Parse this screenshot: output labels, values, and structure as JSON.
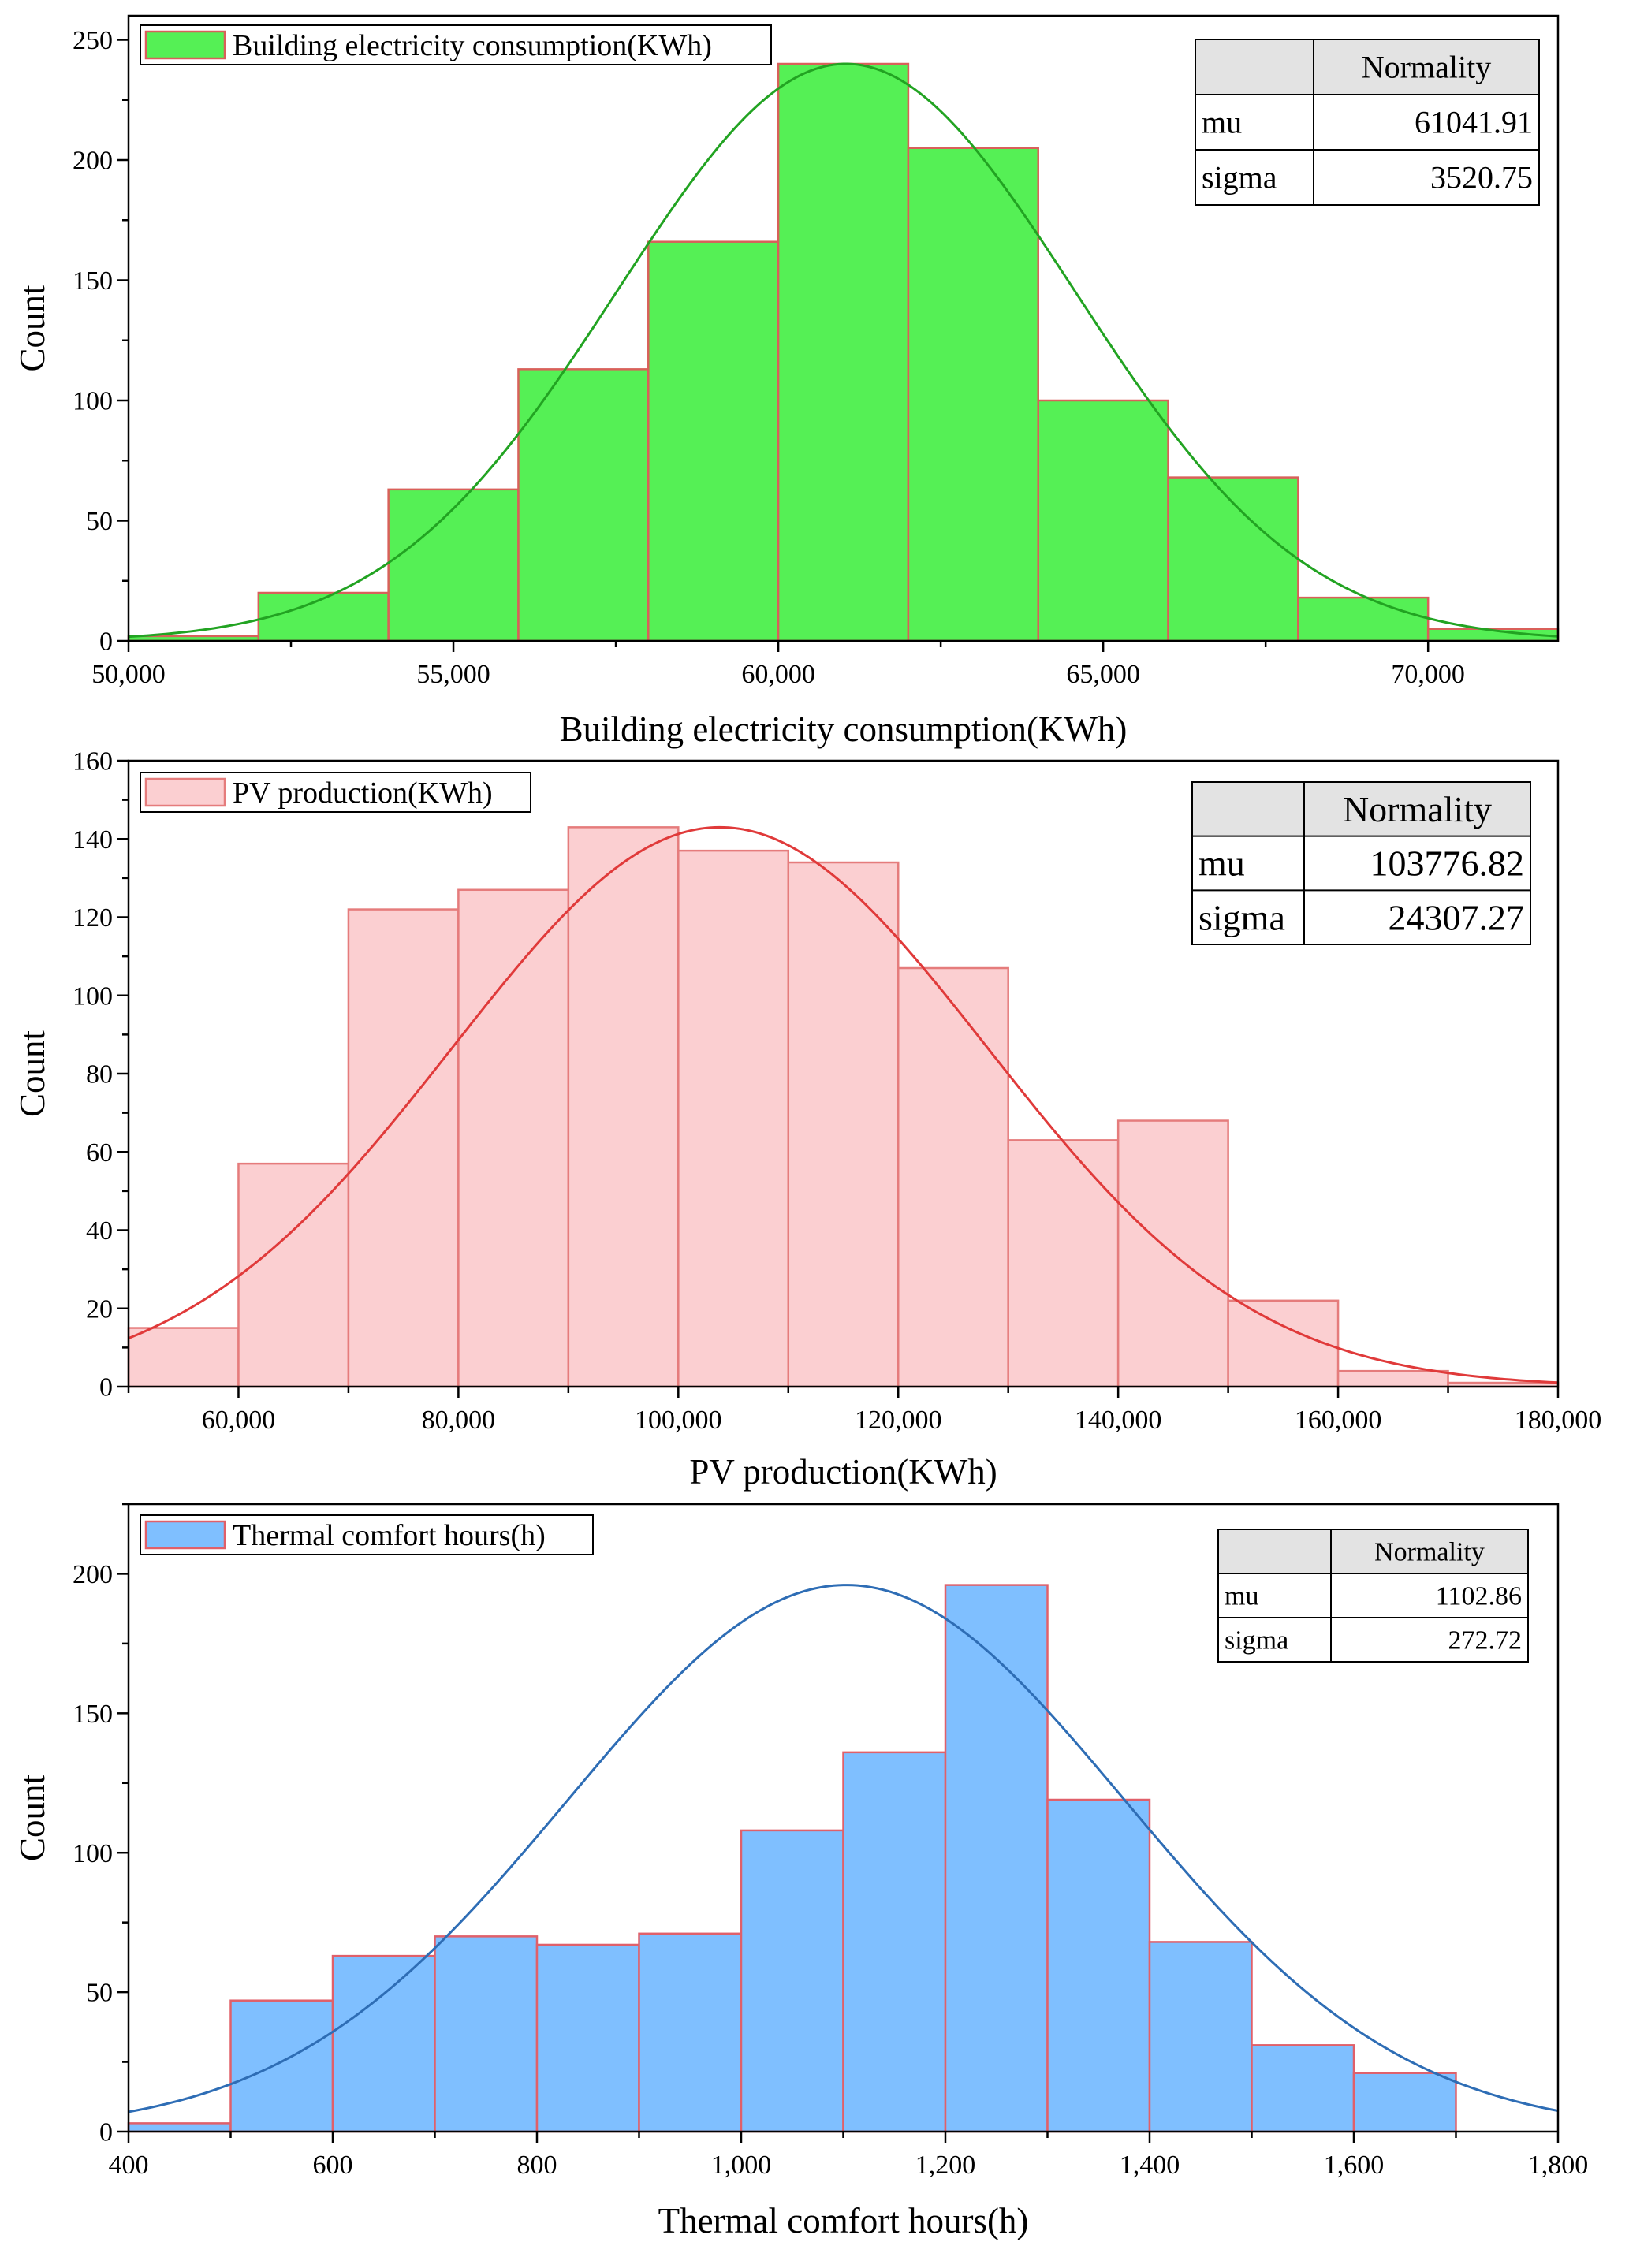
{
  "chart_data": [
    {
      "type": "bar",
      "subtype": "histogram",
      "title": "",
      "xlabel": "Building electricity consumption(KWh)",
      "ylabel": "Count",
      "legend": "Building electricity consumption(KWh)",
      "legend_position": "top-left",
      "xlim": [
        50000,
        72000
      ],
      "ylim": [
        0,
        260
      ],
      "x_ticks": [
        50000,
        55000,
        60000,
        65000,
        70000
      ],
      "x_tick_labels": [
        "50,000",
        "55,000",
        "60,000",
        "65,000",
        "70,000"
      ],
      "y_ticks": [
        0,
        50,
        100,
        150,
        200,
        250
      ],
      "y_tick_labels": [
        "0",
        "50",
        "100",
        "150",
        "200",
        "250"
      ],
      "bin_edges": [
        50000,
        52000,
        54000,
        56000,
        58000,
        60000,
        62000,
        64000,
        66000,
        68000,
        70000,
        72000
      ],
      "values": [
        2,
        20,
        63,
        113,
        166,
        240,
        205,
        100,
        68,
        18,
        5
      ],
      "fill_color": "#55f055",
      "edge_color": "#d9605a",
      "curve": {
        "type": "normal",
        "peak": 240,
        "color": "#22a322"
      },
      "stats_table": {
        "header": "Normality",
        "position": "top-right",
        "rows": [
          {
            "label": "mu",
            "value": "61041.91"
          },
          {
            "label": "sigma",
            "value": "3520.75"
          }
        ]
      }
    },
    {
      "type": "bar",
      "subtype": "histogram",
      "title": "",
      "xlabel": "PV production(KWh)",
      "ylabel": "Count",
      "legend": "PV production(KWh)",
      "legend_position": "top-left",
      "xlim": [
        50000,
        180000
      ],
      "ylim": [
        0,
        160
      ],
      "x_ticks": [
        60000,
        80000,
        100000,
        120000,
        140000,
        160000,
        180000
      ],
      "x_tick_labels": [
        "60,000",
        "80,000",
        "100,000",
        "120,000",
        "140,000",
        "160,000",
        "180,000"
      ],
      "y_ticks": [
        0,
        20,
        40,
        60,
        80,
        100,
        120,
        140,
        160
      ],
      "y_tick_labels": [
        "0",
        "20",
        "40",
        "60",
        "80",
        "100",
        "120",
        "140",
        "160"
      ],
      "bin_edges": [
        50000,
        60000,
        70000,
        80000,
        90000,
        100000,
        110000,
        120000,
        130000,
        140000,
        150000,
        160000,
        170000,
        180000
      ],
      "values": [
        15,
        57,
        122,
        127,
        143,
        137,
        134,
        107,
        63,
        68,
        22,
        4,
        1
      ],
      "fill_color": "#fbcfd1",
      "edge_color": "#e57c7c",
      "curve": {
        "type": "normal",
        "peak": 143,
        "color": "#e03a3a"
      },
      "stats_table": {
        "header": "Normality",
        "position": "top-right",
        "rows": [
          {
            "label": "mu",
            "value": "103776.82"
          },
          {
            "label": "sigma",
            "value": "24307.27"
          }
        ]
      }
    },
    {
      "type": "bar",
      "subtype": "histogram",
      "title": "",
      "xlabel": "Thermal comfort hours(h)",
      "ylabel": "Count",
      "legend": "Thermal comfort hours(h)",
      "legend_position": "top-left",
      "xlim": [
        400,
        1800
      ],
      "ylim": [
        0,
        225
      ],
      "x_ticks": [
        400,
        600,
        800,
        1000,
        1200,
        1400,
        1600,
        1800
      ],
      "x_tick_labels": [
        "400",
        "600",
        "800",
        "1,000",
        "1,200",
        "1,400",
        "1,600",
        "1,800"
      ],
      "y_ticks": [
        0,
        50,
        100,
        150,
        200
      ],
      "y_tick_labels": [
        "0",
        "50",
        "100",
        "150",
        "200"
      ],
      "bin_edges": [
        400,
        500,
        600,
        700,
        800,
        900,
        1000,
        1100,
        1200,
        1300,
        1400,
        1500,
        1600,
        1700
      ],
      "values": [
        3,
        47,
        63,
        70,
        67,
        71,
        108,
        136,
        196,
        119,
        68,
        31,
        21
      ],
      "fill_color": "#7fbfff",
      "edge_color": "#e0606a",
      "curve": {
        "type": "normal",
        "peak": 196,
        "color": "#2e6db5"
      },
      "stats_table": {
        "header": "Normality",
        "position": "top-right",
        "rows": [
          {
            "label": "mu",
            "value": "1102.86"
          },
          {
            "label": "sigma",
            "value": "272.72"
          }
        ]
      }
    }
  ]
}
